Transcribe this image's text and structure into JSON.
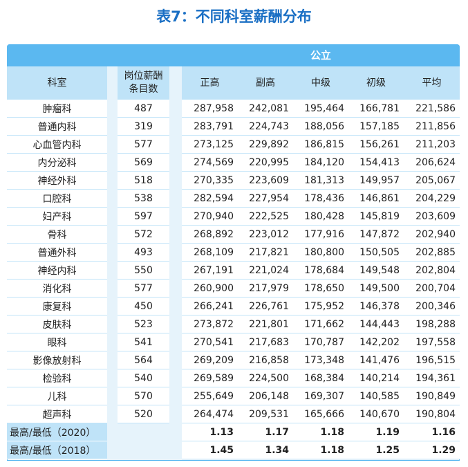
{
  "title": "表7：不同科室薪酬分布",
  "table": {
    "group": "公立",
    "columns": [
      "科室",
      "岗位薪酬\n条目数",
      "正高",
      "副高",
      "中级",
      "初级",
      "平均"
    ],
    "rows": [
      [
        "肿瘤科",
        "487",
        "287,958",
        "242,081",
        "195,464",
        "166,781",
        "221,586"
      ],
      [
        "普通内科",
        "319",
        "283,791",
        "224,743",
        "188,056",
        "157,185",
        "211,856"
      ],
      [
        "心血管内科",
        "577",
        "273,125",
        "229,892",
        "186,815",
        "156,261",
        "211,203"
      ],
      [
        "内分泌科",
        "569",
        "274,569",
        "220,995",
        "184,120",
        "154,413",
        "206,624"
      ],
      [
        "神经外科",
        "518",
        "270,335",
        "223,609",
        "181,313",
        "149,957",
        "205,067"
      ],
      [
        "口腔科",
        "538",
        "282,594",
        "227,954",
        "178,436",
        "146,861",
        "204,229"
      ],
      [
        "妇产科",
        "597",
        "270,940",
        "222,525",
        "180,428",
        "145,819",
        "203,609"
      ],
      [
        "骨科",
        "572",
        "268,892",
        "223,012",
        "177,916",
        "147,872",
        "202,940"
      ],
      [
        "普通外科",
        "493",
        "268,109",
        "217,821",
        "180,800",
        "150,505",
        "202,885"
      ],
      [
        "神经内科",
        "550",
        "267,191",
        "221,024",
        "178,684",
        "149,548",
        "202,804"
      ],
      [
        "消化科",
        "577",
        "260,900",
        "217,979",
        "178,650",
        "149,500",
        "200,704"
      ],
      [
        "康复科",
        "450",
        "266,241",
        "226,761",
        "175,952",
        "146,378",
        "200,346"
      ],
      [
        "皮肤科",
        "523",
        "273,872",
        "221,801",
        "171,662",
        "144,443",
        "198,288"
      ],
      [
        "眼科",
        "541",
        "270,541",
        "217,683",
        "170,787",
        "142,202",
        "197,558"
      ],
      [
        "影像放射科",
        "564",
        "269,209",
        "216,858",
        "173,348",
        "141,476",
        "196,515"
      ],
      [
        "检验科",
        "540",
        "269,589",
        "224,500",
        "168,384",
        "140,214",
        "194,361"
      ],
      [
        "儿科",
        "570",
        "255,649",
        "206,148",
        "169,307",
        "140,585",
        "190,849"
      ],
      [
        "超声科",
        "520",
        "264,474",
        "209,531",
        "165,666",
        "140,670",
        "190,804"
      ]
    ],
    "summary": [
      [
        "最高/最低（2020）",
        "1.13",
        "1.17",
        "1.18",
        "1.19",
        "1.16"
      ],
      [
        "最高/最低（2018）",
        "1.45",
        "1.34",
        "1.18",
        "1.25",
        "1.29"
      ]
    ]
  }
}
